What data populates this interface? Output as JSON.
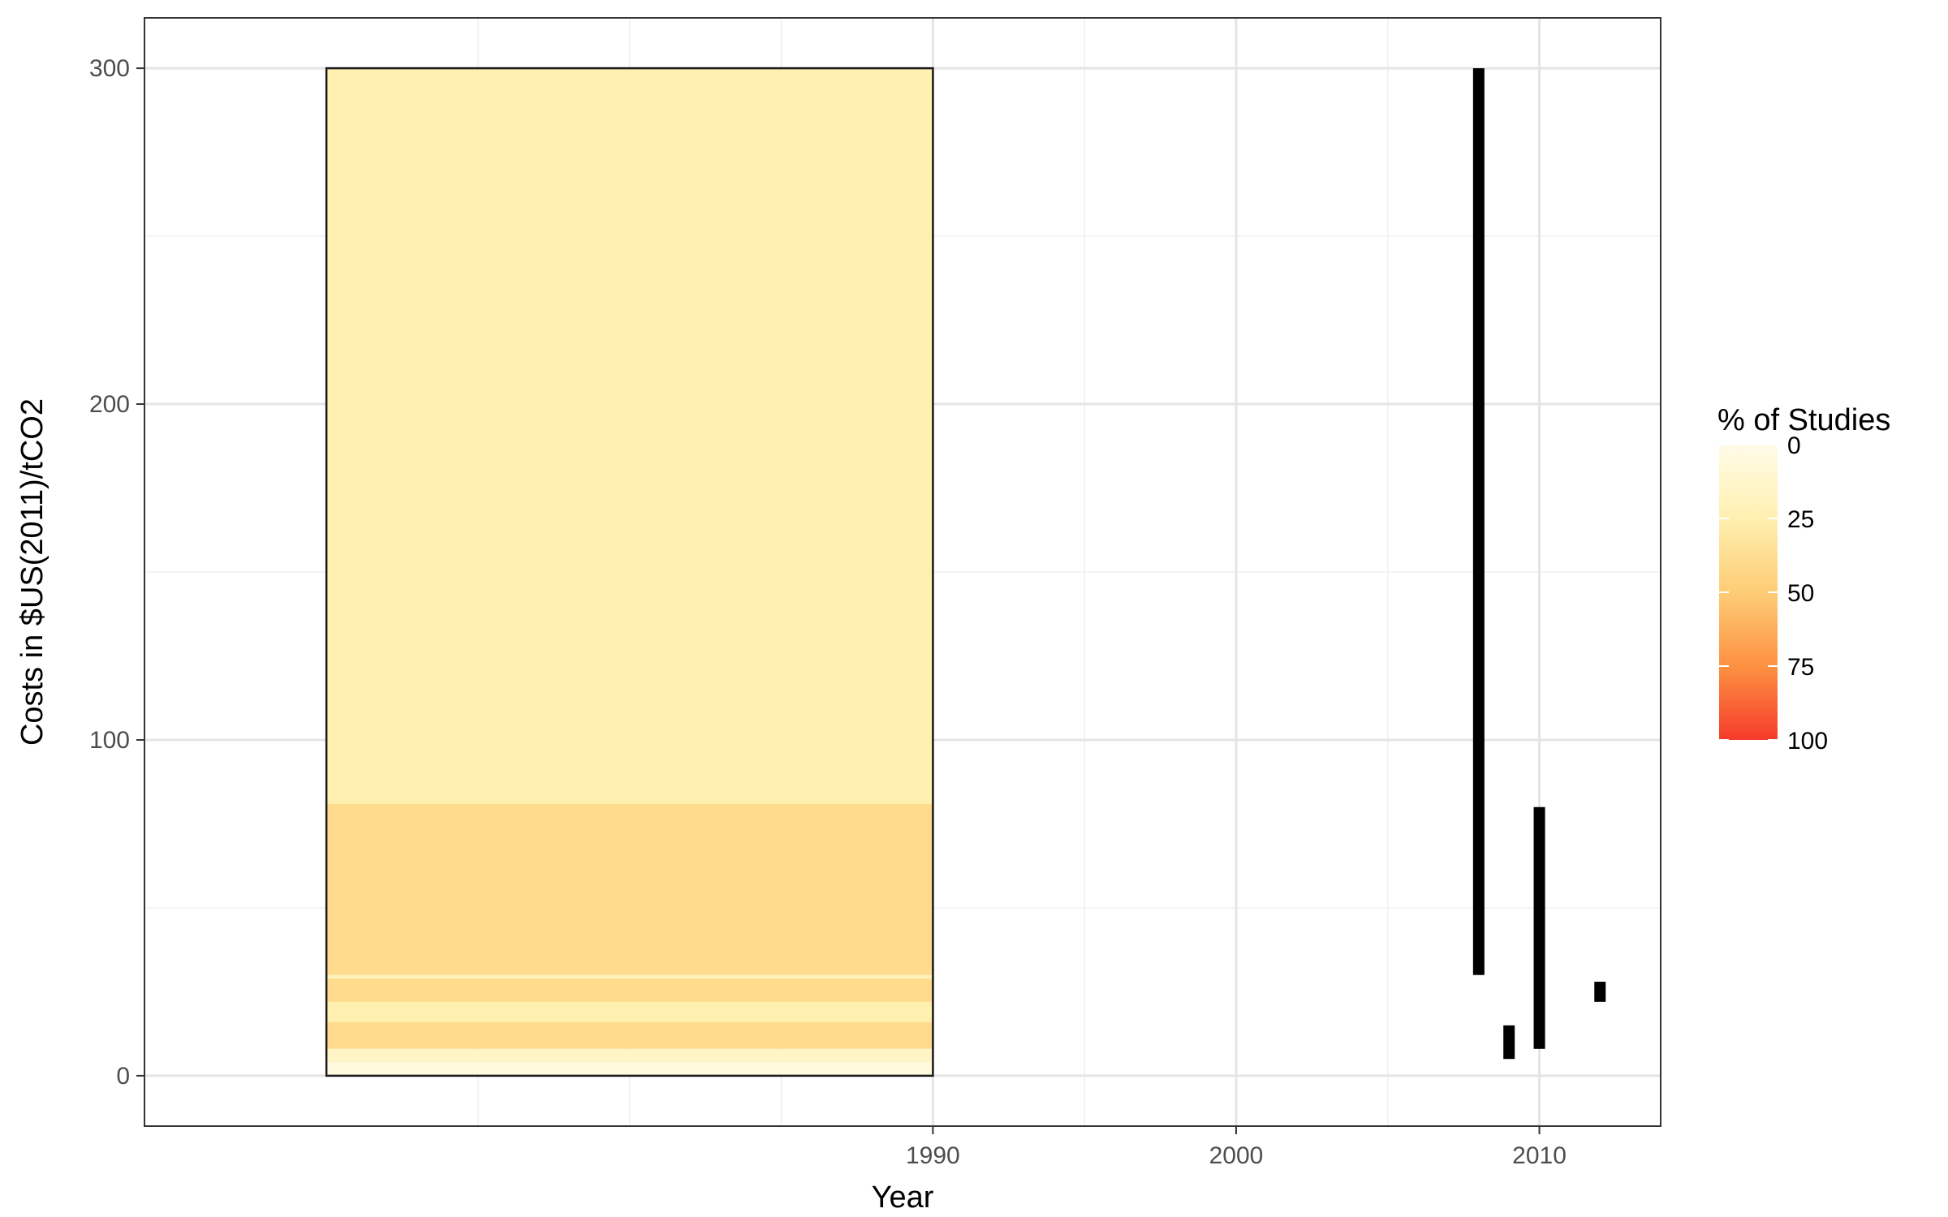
{
  "chart_data": {
    "type": "bar",
    "xlabel": "Year",
    "ylabel": "Costs in $US(2011)/tCO2",
    "xlim": [
      1964,
      2014
    ],
    "ylim": [
      -15,
      315
    ],
    "x_ticks": [
      1990,
      2000,
      2010
    ],
    "x_tick_labels": [
      "1990",
      "2000",
      "2010"
    ],
    "x_minor_ticks": [
      1975,
      1980,
      1985,
      1995,
      2005
    ],
    "y_ticks": [
      0,
      100,
      200,
      300
    ],
    "y_tick_labels": [
      "0",
      "100",
      "200",
      "300"
    ],
    "y_minor_ticks": [
      50,
      150,
      250
    ],
    "grid": true,
    "distribution_block": {
      "x_range": [
        1970,
        1990
      ],
      "y_range": [
        0,
        300
      ],
      "outline_color": "#1a1a1a",
      "bands": [
        {
          "y_range": [
            0,
            4
          ],
          "percent": 5
        },
        {
          "y_range": [
            4,
            8
          ],
          "percent": 15
        },
        {
          "y_range": [
            8,
            16
          ],
          "percent": 40
        },
        {
          "y_range": [
            16,
            22
          ],
          "percent": 25
        },
        {
          "y_range": [
            22,
            29
          ],
          "percent": 40
        },
        {
          "y_range": [
            29,
            30
          ],
          "percent": 20
        },
        {
          "y_range": [
            30,
            81
          ],
          "percent": 40
        },
        {
          "y_range": [
            81,
            300
          ],
          "percent": 25
        }
      ]
    },
    "ranges": [
      {
        "x": 2008,
        "ymin": 30,
        "ymax": 300
      },
      {
        "x": 2009,
        "ymin": 5,
        "ymax": 15
      },
      {
        "x": 2010,
        "ymin": 8,
        "ymax": 80
      },
      {
        "x": 2012,
        "ymin": 22,
        "ymax": 28
      }
    ],
    "range_color": "#000000",
    "legend": {
      "title": "% of Studies",
      "position": "right",
      "min": 0,
      "max": 100,
      "ticks": [
        0,
        25,
        50,
        75,
        100
      ],
      "tick_labels": [
        "0",
        "25",
        "50",
        "75",
        "100"
      ],
      "colors": [
        "#fffbe8",
        "#fff0b0",
        "#fecd76",
        "#fd9142",
        "#f53b2a"
      ]
    }
  }
}
